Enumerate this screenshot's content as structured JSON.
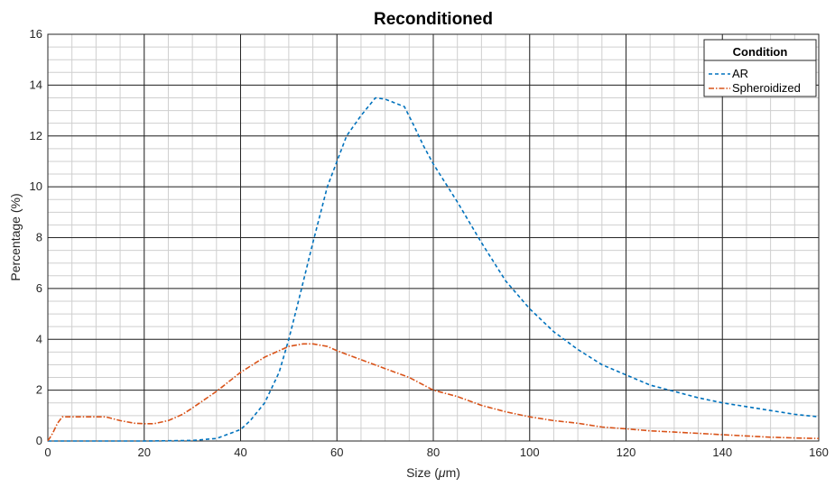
{
  "chart_data": {
    "type": "line",
    "title": "Reconditioned",
    "xlabel_prefix": "Size (",
    "xlabel_mu": "μ",
    "xlabel_suffix": "m)",
    "ylabel": "Percentage (%)",
    "xlim": [
      0,
      160
    ],
    "ylim": [
      0,
      16
    ],
    "xticks": [
      0,
      20,
      40,
      60,
      80,
      100,
      120,
      140,
      160
    ],
    "yticks": [
      0,
      2,
      4,
      6,
      8,
      10,
      12,
      14,
      16
    ],
    "grid": true,
    "minor_grid": true,
    "legend": {
      "title": "Condition",
      "placement": "top-right"
    },
    "series": [
      {
        "name": "AR",
        "color": "#0072BD",
        "dash": "dashed",
        "points": [
          [
            0,
            0
          ],
          [
            10,
            0
          ],
          [
            20,
            0
          ],
          [
            30,
            0.02
          ],
          [
            35,
            0.1
          ],
          [
            40,
            0.45
          ],
          [
            42,
            0.8
          ],
          [
            45,
            1.5
          ],
          [
            48,
            2.7
          ],
          [
            50,
            4.0
          ],
          [
            52,
            5.5
          ],
          [
            55,
            7.8
          ],
          [
            58,
            10.0
          ],
          [
            60,
            11.0
          ],
          [
            62,
            12.0
          ],
          [
            65,
            12.8
          ],
          [
            68,
            13.5
          ],
          [
            70,
            13.45
          ],
          [
            72,
            13.3
          ],
          [
            74,
            13.15
          ],
          [
            76,
            12.4
          ],
          [
            78,
            11.6
          ],
          [
            80,
            10.9
          ],
          [
            85,
            9.4
          ],
          [
            90,
            7.8
          ],
          [
            95,
            6.3
          ],
          [
            100,
            5.2
          ],
          [
            105,
            4.3
          ],
          [
            110,
            3.6
          ],
          [
            115,
            3.0
          ],
          [
            120,
            2.6
          ],
          [
            125,
            2.2
          ],
          [
            130,
            1.95
          ],
          [
            135,
            1.7
          ],
          [
            140,
            1.5
          ],
          [
            145,
            1.35
          ],
          [
            150,
            1.2
          ],
          [
            155,
            1.05
          ],
          [
            160,
            0.95
          ]
        ]
      },
      {
        "name": "Spheroidized",
        "color": "#D95319",
        "dash": "dashdot",
        "points": [
          [
            0,
            0
          ],
          [
            1,
            0.3
          ],
          [
            2,
            0.7
          ],
          [
            3,
            0.95
          ],
          [
            5,
            0.95
          ],
          [
            8,
            0.95
          ],
          [
            12,
            0.95
          ],
          [
            15,
            0.8
          ],
          [
            18,
            0.7
          ],
          [
            20,
            0.68
          ],
          [
            22,
            0.68
          ],
          [
            25,
            0.8
          ],
          [
            28,
            1.05
          ],
          [
            30,
            1.3
          ],
          [
            35,
            1.95
          ],
          [
            40,
            2.7
          ],
          [
            45,
            3.3
          ],
          [
            50,
            3.72
          ],
          [
            53,
            3.82
          ],
          [
            55,
            3.82
          ],
          [
            58,
            3.72
          ],
          [
            60,
            3.55
          ],
          [
            65,
            3.2
          ],
          [
            70,
            2.85
          ],
          [
            75,
            2.5
          ],
          [
            80,
            2.0
          ],
          [
            85,
            1.75
          ],
          [
            90,
            1.4
          ],
          [
            95,
            1.15
          ],
          [
            100,
            0.95
          ],
          [
            105,
            0.8
          ],
          [
            110,
            0.7
          ],
          [
            115,
            0.55
          ],
          [
            120,
            0.48
          ],
          [
            125,
            0.4
          ],
          [
            130,
            0.35
          ],
          [
            135,
            0.3
          ],
          [
            140,
            0.25
          ],
          [
            145,
            0.2
          ],
          [
            150,
            0.15
          ],
          [
            155,
            0.12
          ],
          [
            160,
            0.1
          ]
        ]
      }
    ]
  }
}
